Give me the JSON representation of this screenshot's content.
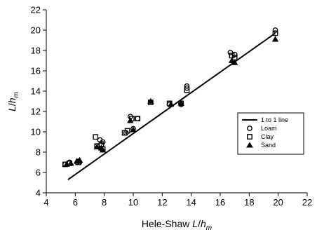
{
  "chart_data": {
    "type": "scatter",
    "xlabel": {
      "prefix": "Hele-Shaw ",
      "var": "L",
      "slash": "/",
      "h": "h",
      "sub": "m"
    },
    "ylabel": {
      "var": "L",
      "slash": "/",
      "h": "h",
      "sub": "m"
    },
    "xlim": [
      4,
      22
    ],
    "ylim": [
      4,
      22
    ],
    "xticks": [
      "4",
      "6",
      "8",
      "10",
      "12",
      "14",
      "16",
      "18",
      "20",
      "22"
    ],
    "yticks": [
      "4",
      "6",
      "8",
      "10",
      "12",
      "14",
      "16",
      "18",
      "20",
      "22"
    ],
    "grid": false,
    "legend_position": "right",
    "line": {
      "name": "1 to 1 line",
      "x": [
        5.5,
        19.8
      ],
      "y": [
        5.3,
        19.7
      ]
    },
    "series": [
      {
        "name": "Loam",
        "marker": "circle",
        "points": [
          [
            5.3,
            6.8
          ],
          [
            5.6,
            7.0
          ],
          [
            6.2,
            7.1
          ],
          [
            6.3,
            7.0
          ],
          [
            7.5,
            8.6
          ],
          [
            7.7,
            9.2
          ],
          [
            7.8,
            8.7
          ],
          [
            7.9,
            9.0
          ],
          [
            9.5,
            9.9
          ],
          [
            9.8,
            11.5
          ],
          [
            10.0,
            10.3
          ],
          [
            10.3,
            11.3
          ],
          [
            12.5,
            12.7
          ],
          [
            13.3,
            12.7
          ],
          [
            13.7,
            14.5
          ],
          [
            13.7,
            14.3
          ],
          [
            16.7,
            17.8
          ],
          [
            17.0,
            17.6
          ],
          [
            19.8,
            20.0
          ]
        ]
      },
      {
        "name": "Clay",
        "marker": "square",
        "points": [
          [
            5.3,
            6.8
          ],
          [
            5.6,
            6.9
          ],
          [
            6.2,
            7.0
          ],
          [
            7.4,
            9.5
          ],
          [
            7.5,
            8.6
          ],
          [
            7.8,
            8.8
          ],
          [
            7.9,
            8.3
          ],
          [
            9.4,
            9.9
          ],
          [
            9.6,
            10.1
          ],
          [
            9.9,
            11.3
          ],
          [
            10.3,
            11.3
          ],
          [
            11.2,
            12.9
          ],
          [
            12.5,
            12.8
          ],
          [
            13.3,
            12.8
          ],
          [
            13.7,
            14.1
          ],
          [
            16.8,
            17.5
          ],
          [
            17.0,
            17.3
          ],
          [
            19.8,
            19.7
          ]
        ]
      },
      {
        "name": "Sand",
        "marker": "triangle",
        "points": [
          [
            5.4,
            6.8
          ],
          [
            5.7,
            6.9
          ],
          [
            6.1,
            7.1
          ],
          [
            6.3,
            7.2
          ],
          [
            7.5,
            8.5
          ],
          [
            7.9,
            8.2
          ],
          [
            7.8,
            8.4
          ],
          [
            9.8,
            11.1
          ],
          [
            10.0,
            10.2
          ],
          [
            11.2,
            13.0
          ],
          [
            12.6,
            12.7
          ],
          [
            13.3,
            12.8
          ],
          [
            16.8,
            17.0
          ],
          [
            17.0,
            16.8
          ],
          [
            19.8,
            19.1
          ]
        ]
      }
    ]
  }
}
